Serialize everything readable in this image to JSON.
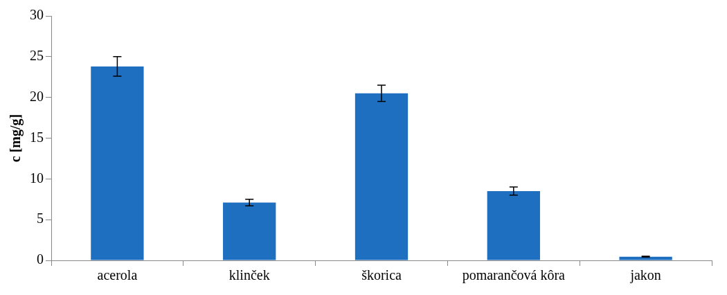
{
  "chart_data": {
    "type": "bar",
    "ylabel": "c [mg/g]",
    "categories": [
      "acerola",
      "klinček",
      "škorica",
      "pomarančová kôra",
      "jakon"
    ],
    "values": [
      23.8,
      7.1,
      20.5,
      8.5,
      0.45
    ],
    "color": "#1f6fc0",
    "errors": [
      1.2,
      0.4,
      1.0,
      0.5,
      0.05
    ],
    "ylim": [
      0,
      30
    ],
    "yticks": [
      0,
      5,
      10,
      15,
      20,
      25,
      30
    ],
    "grid": false,
    "legend": false
  }
}
